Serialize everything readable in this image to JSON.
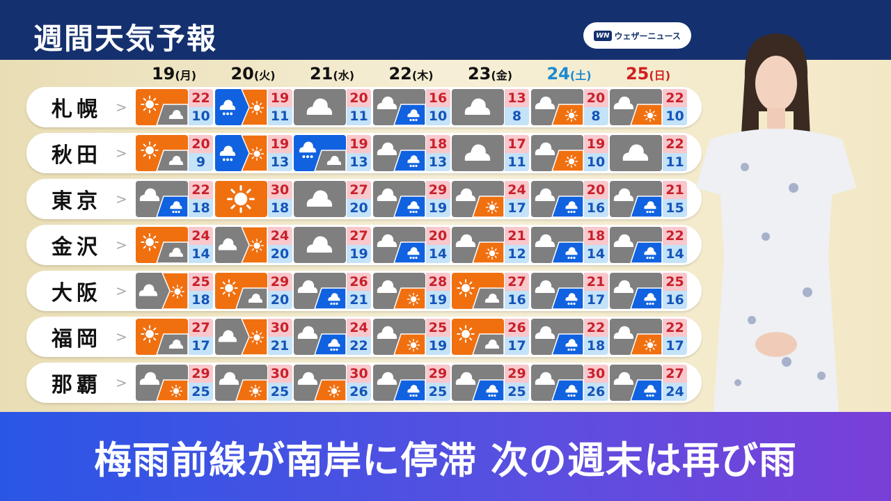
{
  "header": {
    "title": "週間天気予報",
    "logo_mark": "WN",
    "logo_text": "ウェザーニュース"
  },
  "colors": {
    "sun": "#f07010",
    "cloud": "#7f7f7f",
    "rain": "#1062e0",
    "saturday": "#1a8ad0",
    "sunday": "#d02020"
  },
  "days": [
    {
      "num": "19",
      "dow": "(月)"
    },
    {
      "num": "20",
      "dow": "(火)"
    },
    {
      "num": "21",
      "dow": "(水)"
    },
    {
      "num": "22",
      "dow": "(木)"
    },
    {
      "num": "23",
      "dow": "(金)"
    },
    {
      "num": "24",
      "dow": "(土)",
      "color": "#1a8ad0"
    },
    {
      "num": "25",
      "dow": "(日)",
      "color": "#d02020"
    }
  ],
  "cities": [
    {
      "name": "札幌",
      "f": [
        [
          "sun",
          "cloud",
          "step",
          22,
          10
        ],
        [
          "rain",
          "sun",
          "then",
          19,
          11
        ],
        [
          "cloud",
          "",
          "",
          20,
          11
        ],
        [
          "cloud",
          "rain",
          "step",
          16,
          10
        ],
        [
          "cloud",
          "",
          "",
          13,
          8
        ],
        [
          "cloud",
          "sun",
          "step",
          20,
          8
        ],
        [
          "cloud",
          "sun",
          "step",
          22,
          10
        ]
      ]
    },
    {
      "name": "秋田",
      "f": [
        [
          "sun",
          "cloud",
          "step",
          20,
          9
        ],
        [
          "rain",
          "sun",
          "then",
          19,
          13
        ],
        [
          "rain",
          "cloud",
          "step",
          19,
          13
        ],
        [
          "cloud",
          "rain",
          "step",
          18,
          13
        ],
        [
          "cloud",
          "",
          "",
          17,
          11
        ],
        [
          "cloud",
          "sun",
          "step",
          19,
          10
        ],
        [
          "cloud",
          "",
          "",
          22,
          11
        ]
      ]
    },
    {
      "name": "東京",
      "f": [
        [
          "cloud",
          "rain",
          "step",
          22,
          18
        ],
        [
          "sun",
          "",
          "",
          30,
          18
        ],
        [
          "cloud",
          "",
          "",
          27,
          20
        ],
        [
          "cloud",
          "rain",
          "step",
          29,
          19
        ],
        [
          "cloud",
          "sun",
          "step",
          24,
          17
        ],
        [
          "cloud",
          "rain",
          "step",
          20,
          16
        ],
        [
          "cloud",
          "rain",
          "step",
          21,
          15
        ]
      ]
    },
    {
      "name": "金沢",
      "f": [
        [
          "sun",
          "cloud",
          "step",
          24,
          14
        ],
        [
          "cloud",
          "sun",
          "then",
          24,
          20
        ],
        [
          "cloud",
          "",
          "",
          27,
          19
        ],
        [
          "cloud",
          "rain",
          "step",
          20,
          14
        ],
        [
          "cloud",
          "sun",
          "step",
          21,
          12
        ],
        [
          "cloud",
          "rain",
          "step",
          18,
          14
        ],
        [
          "cloud",
          "rain",
          "step",
          22,
          14
        ]
      ]
    },
    {
      "name": "大阪",
      "f": [
        [
          "cloud",
          "sun",
          "then",
          25,
          18
        ],
        [
          "sun",
          "cloud",
          "step",
          29,
          20
        ],
        [
          "cloud",
          "rain",
          "step",
          26,
          21
        ],
        [
          "cloud",
          "sun",
          "step",
          28,
          19
        ],
        [
          "sun",
          "cloud",
          "step",
          27,
          16
        ],
        [
          "cloud",
          "rain",
          "step",
          21,
          17
        ],
        [
          "cloud",
          "rain",
          "step",
          25,
          16
        ]
      ]
    },
    {
      "name": "福岡",
      "f": [
        [
          "sun",
          "cloud",
          "step",
          27,
          17
        ],
        [
          "cloud",
          "sun",
          "then",
          30,
          21
        ],
        [
          "cloud",
          "rain",
          "step",
          24,
          22
        ],
        [
          "cloud",
          "sun",
          "step",
          25,
          19
        ],
        [
          "sun",
          "cloud",
          "step",
          26,
          17
        ],
        [
          "cloud",
          "rain",
          "step",
          22,
          18
        ],
        [
          "cloud",
          "sun",
          "step",
          22,
          17
        ]
      ]
    },
    {
      "name": "那覇",
      "f": [
        [
          "cloud",
          "sun",
          "step",
          29,
          25
        ],
        [
          "cloud",
          "sun",
          "step",
          30,
          25
        ],
        [
          "cloud",
          "sun",
          "step",
          30,
          26
        ],
        [
          "cloud",
          "rain",
          "step",
          29,
          25
        ],
        [
          "cloud",
          "rain",
          "step",
          29,
          25
        ],
        [
          "cloud",
          "rain",
          "step",
          30,
          26
        ],
        [
          "cloud",
          "rain",
          "step",
          27,
          24
        ]
      ]
    }
  ],
  "banner": {
    "headline": "梅雨前線が南岸に停滞 次の週末は再び雨"
  }
}
